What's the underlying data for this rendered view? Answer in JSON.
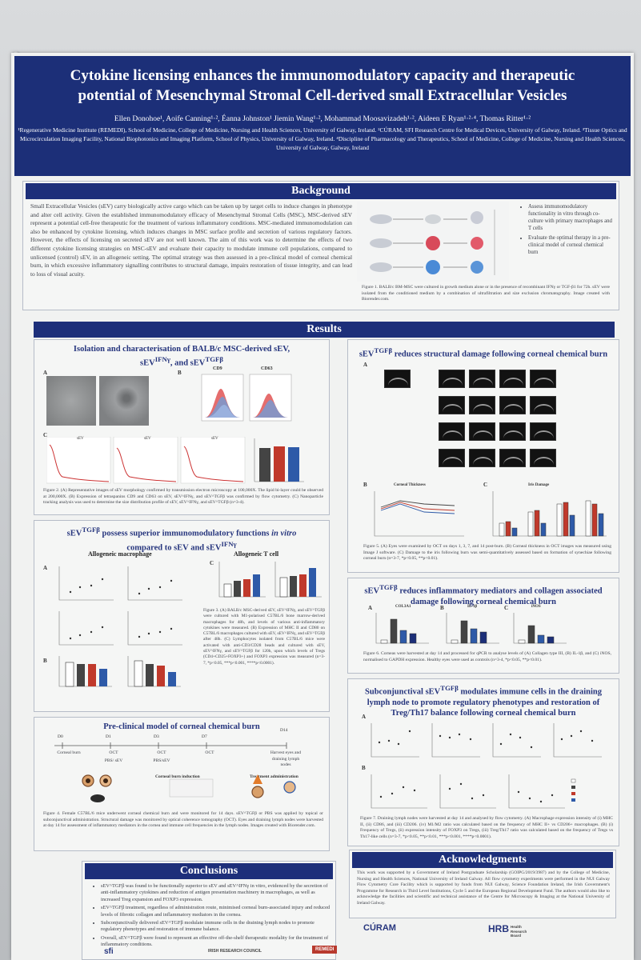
{
  "poster": {
    "title_line1": "Cytokine licensing enhances the immunomodulatory capacity and therapeutic",
    "title_line2": "potential of Mesenchymal Stromal Cell-derived small Extracellular Vesicles",
    "authors": "Ellen Donohoe¹, Aoife Canning¹·², Éanna Johnston¹ Jiemin Wang¹·², Mohammad Moosavizadeh¹·², Aideen E Ryan¹·²·⁴, Thomas Ritter¹·²",
    "affiliations": "¹Regenerative Medicine Institute (REMEDI), School of Medicine, College of Medicine, Nursing and Health Sciences, University of Galway, Ireland. ²CÚRAM, SFI Research Centre for Medical Devices, University of Galway, Ireland. ³Tissue Optics and Microcirculation Imaging Facility, National Biophotonics and Imaging Platform, School of Physics, University of Galway, Ireland. ⁴Discipline of Pharmacology and Therapeutics, School of Medicine, College of Medicine, Nursing and Health Sciences, University of Galway, Galway, Ireland"
  },
  "background": {
    "heading": "Background",
    "text": "Small Extracellular Vesicles (sEV) carry biologically active cargo which can be taken up by target cells to induce changes in phenotype and alter cell activity. Given the established immunomodulatory efficacy of Mesenchymal Stromal Cells (MSC), MSC-derived sEV represent a potential cell-free therapeutic for the treatment of various inflammatory conditions. MSC-mediated immunomodulation can also be enhanced by cytokine licensing, which induces changes in MSC surface profile and secretion of various regulatory factors. However, the effects of licensing on secreted sEV are not well known. The aim of this work was to determine the effects of two different cytokine licensing strategies on MSC-sEV and evaluate their capacity to modulate immune cell populations, compared to unlicensed (control) sEV, in an allogeneic setting. The optimal strategy was then assessed in a pre-clinical model of corneal chemical burn, in which excessive inflammatory signalling contributes to structural damage, impairs restoration of tissue integrity, and can lead to loss of visual acuity.",
    "bullets": [
      "Assess immunomodulatory functionality in vitro through co-culture with primary macrophages and T cells",
      "Evaluate the optimal therapy in a pre-clinical model of corneal chemical burn"
    ],
    "fig_caption": "Figure 1. BALB/c BM-MSC were cultured in growth medium alone or in the presence of recombinant IFNγ or TGF-β1 for 72h. sEV were isolated from the conditioned medium by a combination of ultrafiltration and size exclusion chromatography. Image created with Biorender.com."
  },
  "results": {
    "heading": "Results",
    "iso": {
      "title": "Isolation and characterisation of BALB/c MSC-derived sEV, sEV^IFNγ, and sEV^TGFβ",
      "title_a": "Isolation and characterisation of BALB/c MSC-derived sEV,",
      "title_b": "sEV",
      "title_b_sup": "IFNγ",
      "title_c": ", and sEV",
      "title_c_sup": "TGFβ",
      "label_a": "A",
      "label_b": "B",
      "label_c": "C",
      "cd_a": "CD9",
      "cd_b": "CD63",
      "dist_labels": [
        "sEV",
        "sEV",
        "sEV"
      ],
      "caption": "Figure 2. (A) Representative images of sEV morphology confirmed by transmission electron microscopy at 100,000X. The lipid bi-layer could be observed at 200,000X. (B) Expression of tetraspanins CD9 and CD63 on sEV, sEV^IFNγ, and sEV^TGFβ was confirmed by flow cytometry. (C) Nanoparticle tracking analysis was used to determine the size distribution profile of sEV, sEV^IFNγ, and sEV^TGFβ (n=3-4)."
    },
    "immuno": {
      "title_a": "sEV",
      "title_a_sup": "TGFβ",
      "title_b": " possess superior immunomodulatory functions ",
      "title_b_em": "in vitro",
      "title_c": "compared to sEV and sEV",
      "title_c_sup": "IFNγ",
      "macro_label": "Allogeneic macrophage",
      "tcell_label": "Allogeneic T cell",
      "label_a": "A",
      "label_b": "B",
      "label_c": "C",
      "caption": "Figure 3. (A) BALB/c MSC-derived sEV, sEV^IFNγ, and sEV^TGFβ were cultured with M1-polarised C57BL/6 bone marrow-derived macrophages for 48h, and levels of various anti-inflammatory cytokines were measured. (B) Expression of MHC II and CD80 on C57BL/6 macrophages cultured with sEV, sEV^IFNγ, and sEV^TGFβ after 48h. (C) Lymphocytes isolated from C57BL/6 mice were activated with anti-CD3/CD28 beads and cultured with sEV, sEV^IFNγ, and sEV^TGFβ for 120h, upon which levels of Tregs (CD4+CD25+FOXP3+) and FOXP3 expression was measured (n=3-7, *p<0.05, ***p<0.001, ****p<0.0001)."
    },
    "preclin": {
      "title": "Pre-clinical model of corneal chemical burn",
      "days": [
        "D0",
        "D1",
        "D3",
        "D7",
        "D14"
      ],
      "events": [
        "Corneal burn",
        "PBS/ sEV^TGFβ",
        "PBS/sEV^TGFβ",
        "OCT",
        "OCT",
        "OCT",
        "Harvest eyes and draining lymph nodes"
      ],
      "ev1": "Corneal burn",
      "ev2": "PBS/ sEV",
      "ev3": "PBS/sEV",
      "ev4": "OCT",
      "ev5": "OCT",
      "ev6": "OCT",
      "ev7": "Harvest eyes and draining lymph nodes",
      "burn_induction": "Corneal burn induction",
      "treatment": "Treatment administration",
      "caption": "Figure 4. Female C57BL/6 mice underwent corneal chemical burn and were monitored for 14 days. sEV^TGFβ or PBS was applied by topical or subconjunctival administration. Structural damage was monitored by optical coherence tomography (OCT). Eyes and draining lymph nodes were harvested at day 14 for assessment of inflammatory mediators in the cornea and immune cell frequencies in the lymph nodes. Images created with Biorender.com."
    },
    "struct": {
      "title_a": "sEV",
      "title_a_sup": "TGFβ",
      "title_b": " reduces structural damage following corneal chemical burn",
      "label_a": "A",
      "label_b": "B",
      "label_c": "C",
      "chart_b_title": "Corneal Thickness",
      "chart_c_title": "Iris Damage",
      "caption": "Figure 5. (A) Eyes were examined by OCT on days 1, 3, 7, and 14 post-burn. (B) Corneal thickness in OCT images was measured using Image J software. (C) Damage to the iris following burn was semi-quantitatively assessed based on formation of synechiae following corneal burn (n=3-7, *p<0.05, **p<0.01)."
    },
    "inflam": {
      "title_a": "sEV",
      "title_a_sup": "TGFβ",
      "title_b": " reduces inflammatory mediators and collagen associated damage following corneal chemical burn",
      "genes": [
        "COL3A1",
        "IL-1β",
        "iNOS"
      ],
      "label_a": "A",
      "label_b": "B",
      "label_c": "C",
      "caption": "Figure 6. Corneas were harvested at day 14 and processed for qPCR to analyse levels of (A) Collagen type III, (B) IL-1β, and (C) iNOS, normalised to GAPDH expression. Healthy eyes were used as controls (n=3-4, *p<0.05, **p<0.01)."
    },
    "lymph": {
      "title_a": "Subconjunctival sEV",
      "title_a_sup": "TGFβ",
      "title_b": " modulates immune cells in the draining lymph node to promote regulatory phenotypes and restoration of Treg/Th17 balance following corneal chemical burn",
      "label_a": "A",
      "label_b": "B",
      "caption": "Figure 7. Draining lymph nodes were harvested at day 14 and analysed by flow cytometry. (A) Macrophage expression intensity of (i) MHC II, (ii) CD86, and (iii) CD206. (iv) M1/M2 ratio was calculated based on the frequency of MHC II+ vs CD206+ macrophages. (B) (i) Frequency of Tregs, (ii) expression intensity of FOXP3 on Tregs, (iii) Treg/Th17 ratio was calculated based on the frequency of Tregs vs Th17-like cells (n=3-7, *p<0.05, **p<0.01, ***p<0.001, ****p<0.0001)."
    }
  },
  "conclusions": {
    "heading": "Conclusions",
    "items": [
      "sEV^TGFβ was found to be functionally superior to sEV and sEV^IFNγ in vitro, evidenced by the secretion of anti-inflammatory cytokines and reduction of antigen presentation machinery in macrophages, as well as increased Treg expansion and FOXP3 expression.",
      "sEV^TGFβ treatment, regardless of administration route, minimised corneal burn-associated injury and reduced levels of fibrotic collagen and inflammatory mediators in the cornea.",
      "Subconjunctivally delivered sEV^TGFβ modulate immune cells in the draining lymph nodes to promote regulatory phenotypes and restoration of immune balance.",
      "Overall, sEV^TGFβ were found to represent an effective off-the-shelf therapeutic modality for the treatment of inflammatory conditions."
    ]
  },
  "ack": {
    "heading": "Acknowledgments",
    "text": "This work was supported by a Government of Ireland Postgraduate Scholarship (GOIPG/2019/3987) and by the College of Medicine, Nursing and Health Sciences, National University of Ireland Galway. All flow cytometry experiments were performed in the NUI Galway Flow Cytometry Core Facility which is supported by funds from NUI Galway, Science Foundation Ireland, the Irish Government's Programme for Research in Third Level Institutions, Cycle 5 and the European Regional Development Fund. The authors would also like to acknowledge the facilities and scientific and technical assistance of the Centre for Microscopy & Imaging at the National University of Ireland Galway."
  },
  "logos": {
    "sfi": "sfi",
    "irc": "IRISH RESEARCH COUNCIL",
    "remedi": "REMEDI",
    "curam": "CÚRAM",
    "hrb": "HRB",
    "hrb_sub": "Health Research Board"
  },
  "colors": {
    "header": "#1c2f78",
    "band": "#1d2f7a",
    "sev": "#2b2b2b",
    "sev_ifn": "#c0392b",
    "sev_tgf": "#2e5aa8"
  }
}
